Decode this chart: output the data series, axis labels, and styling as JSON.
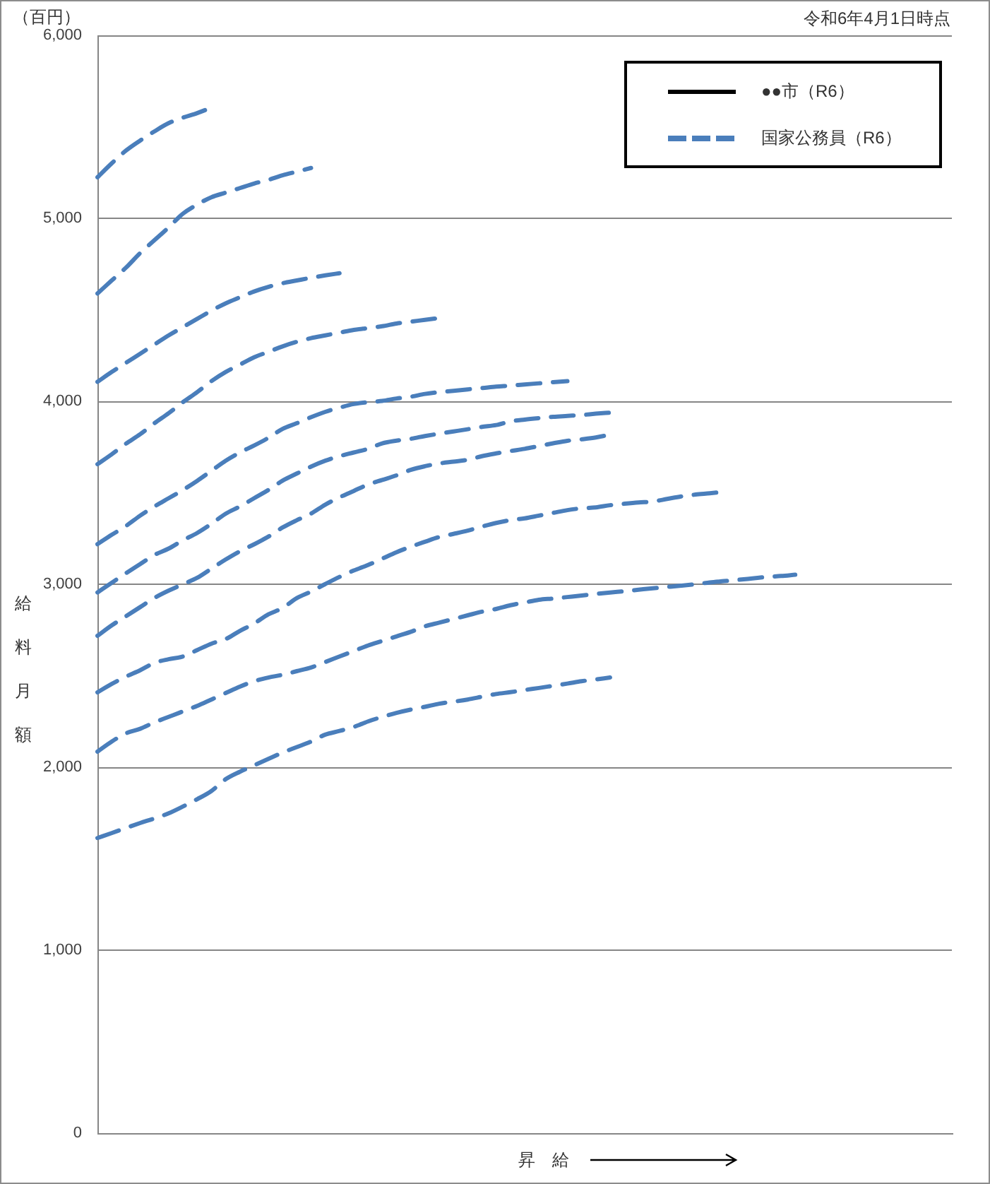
{
  "chart_data": {
    "type": "line",
    "annotations": [
      "（百円）",
      "令和6年4月1日時点"
    ],
    "xlabel": "昇　給",
    "ylabel": "給料月額",
    "categories": [
      null,
      null,
      null,
      null,
      null,
      null,
      null,
      null,
      null,
      null,
      null,
      null,
      null,
      null,
      null,
      null,
      null,
      null,
      null,
      null,
      null,
      null,
      null,
      null,
      null,
      null,
      null,
      null,
      null,
      null,
      null,
      null,
      null,
      null,
      null,
      null,
      null,
      null,
      null,
      null,
      null,
      null,
      null,
      null,
      null,
      null,
      null,
      null,
      null,
      null,
      null,
      null,
      null,
      null,
      null,
      null,
      null,
      null,
      null,
      null,
      null
    ],
    "series": [
      {
        "name": "●●市（R6）",
        "color": "#000000",
        "line_style": "solid",
        "values": [
          null,
          null,
          null,
          null,
          null,
          null,
          null,
          null,
          null,
          null,
          null,
          null,
          null,
          null,
          null,
          null,
          null,
          null,
          null,
          null,
          null,
          null,
          null,
          null,
          null,
          null,
          null,
          null,
          null,
          null,
          null,
          null,
          null,
          null,
          null,
          null,
          null,
          null,
          null,
          null,
          null,
          null,
          null,
          null,
          null,
          null,
          null,
          null,
          null,
          null,
          null,
          null,
          null,
          null,
          null,
          null,
          null,
          null,
          null,
          null,
          null
        ]
      },
      {
        "name": "国家公務員（R6）",
        "color": "#4a7ebb",
        "line_style": "dashed",
        "values": [
          5224,
          5300,
          5370,
          5425,
          5475,
          5520,
          5550,
          5575,
          5605,
          null,
          null,
          null,
          null,
          null,
          null,
          null,
          null,
          null,
          null,
          null,
          null,
          null,
          null,
          null,
          null,
          null,
          null,
          null,
          null,
          null,
          null,
          null,
          null,
          null,
          null,
          null,
          null,
          null,
          null,
          null,
          null,
          null,
          null,
          null,
          null,
          null,
          null,
          null,
          null,
          null,
          null,
          null,
          null,
          null,
          null,
          null,
          null,
          null,
          null,
          null,
          null
        ]
      },
      {
        "color": "#4a7ebb",
        "line_style": "dashed",
        "values": [
          4589,
          4660,
          4730,
          4810,
          4880,
          4950,
          5025,
          5075,
          5115,
          5140,
          5165,
          5190,
          5210,
          5235,
          5255,
          5275,
          null,
          null,
          null,
          null,
          null,
          null,
          null,
          null,
          null,
          null,
          null,
          null,
          null,
          null,
          null,
          null,
          null,
          null,
          null,
          null,
          null,
          null,
          null,
          null,
          null,
          null,
          null,
          null,
          null,
          null,
          null,
          null,
          null,
          null,
          null,
          null,
          null,
          null,
          null,
          null,
          null,
          null,
          null,
          null,
          null
        ]
      },
      {
        "color": "#4a7ebb",
        "line_style": "dashed",
        "values": [
          4106,
          4160,
          4210,
          4260,
          4310,
          4360,
          4405,
          4450,
          4495,
          4535,
          4568,
          4600,
          4625,
          4645,
          4660,
          4675,
          4688,
          4700,
          null,
          null,
          null,
          null,
          null,
          null,
          null,
          null,
          null,
          null,
          null,
          null,
          null,
          null,
          null,
          null,
          null,
          null,
          null,
          null,
          null,
          null,
          null,
          null,
          null,
          null,
          null,
          null,
          null,
          null,
          null,
          null,
          null,
          null,
          null,
          null,
          null,
          null,
          null,
          null,
          null,
          null,
          null
        ]
      },
      {
        "color": "#4a7ebb",
        "line_style": "dashed",
        "values": [
          3656,
          3710,
          3768,
          3820,
          3880,
          3935,
          3995,
          4050,
          4110,
          4160,
          4200,
          4240,
          4270,
          4300,
          4325,
          4345,
          4360,
          4375,
          4390,
          4400,
          4410,
          4425,
          4435,
          4445,
          4455,
          null,
          null,
          null,
          null,
          null,
          null,
          null,
          null,
          null,
          null,
          null,
          null,
          null,
          null,
          null,
          null,
          null,
          null,
          null,
          null,
          null,
          null,
          null,
          null,
          null,
          null,
          null,
          null,
          null,
          null,
          null,
          null,
          null,
          null,
          null,
          null
        ]
      },
      {
        "color": "#4a7ebb",
        "line_style": "dashed",
        "values": [
          3219,
          3270,
          3318,
          3375,
          3425,
          3470,
          3515,
          3565,
          3620,
          3675,
          3720,
          3758,
          3800,
          3849,
          3880,
          3913,
          3942,
          3965,
          3985,
          3995,
          4002,
          4015,
          4025,
          4040,
          4050,
          4057,
          4065,
          4072,
          4080,
          4085,
          4092,
          4098,
          4104,
          4110,
          null,
          null,
          null,
          null,
          null,
          null,
          null,
          null,
          null,
          null,
          null,
          null,
          null,
          null,
          null,
          null,
          null,
          null,
          null,
          null,
          null,
          null,
          null,
          null,
          null,
          null,
          null
        ]
      },
      {
        "color": "#4a7ebb",
        "line_style": "dashed",
        "values": [
          2955,
          3008,
          3060,
          3110,
          3160,
          3195,
          3240,
          3280,
          3330,
          3385,
          3425,
          3470,
          3515,
          3566,
          3605,
          3643,
          3675,
          3700,
          3720,
          3740,
          3770,
          3785,
          3795,
          3810,
          3823,
          3835,
          3847,
          3860,
          3870,
          3890,
          3900,
          3908,
          3915,
          3920,
          3925,
          3932,
          3938,
          null,
          null,
          null,
          null,
          null,
          null,
          null,
          null,
          null,
          null,
          null,
          null,
          null,
          null,
          null,
          null,
          null,
          null,
          null,
          null,
          null,
          null,
          null,
          null
        ]
      },
      {
        "color": "#4a7ebb",
        "line_style": "dashed",
        "values": [
          2718,
          2775,
          2825,
          2875,
          2925,
          2965,
          3000,
          3035,
          3085,
          3135,
          3180,
          3218,
          3260,
          3310,
          3350,
          3386,
          3435,
          3475,
          3510,
          3545,
          3570,
          3595,
          3625,
          3645,
          3660,
          3670,
          3680,
          3700,
          3715,
          3728,
          3740,
          3755,
          3770,
          3784,
          3792,
          3802,
          3818,
          null,
          null,
          null,
          null,
          null,
          null,
          null,
          null,
          null,
          null,
          null,
          null,
          null,
          null,
          null,
          null,
          null,
          null,
          null,
          null,
          null,
          null,
          null,
          null
        ]
      },
      {
        "color": "#4a7ebb",
        "line_style": "dashed",
        "values": [
          2409,
          2455,
          2495,
          2530,
          2570,
          2590,
          2605,
          2640,
          2675,
          2700,
          2745,
          2785,
          2835,
          2870,
          2924,
          2960,
          3001,
          3040,
          3075,
          3105,
          3140,
          3175,
          3205,
          3232,
          3258,
          3275,
          3293,
          3315,
          3335,
          3350,
          3360,
          3375,
          3390,
          3405,
          3415,
          3420,
          3432,
          3440,
          3447,
          3452,
          3466,
          3480,
          3490,
          3497,
          3505,
          null,
          null,
          null,
          null,
          null,
          null,
          null,
          null,
          null,
          null,
          null,
          null,
          null,
          null,
          null,
          null
        ]
      },
      {
        "color": "#4a7ebb",
        "line_style": "dashed",
        "values": [
          2085,
          2140,
          2185,
          2210,
          2245,
          2275,
          2305,
          2335,
          2370,
          2405,
          2440,
          2470,
          2490,
          2505,
          2525,
          2545,
          2575,
          2605,
          2635,
          2665,
          2690,
          2715,
          2740,
          2770,
          2790,
          2810,
          2830,
          2850,
          2865,
          2885,
          2900,
          2915,
          2922,
          2930,
          2938,
          2947,
          2955,
          2962,
          2970,
          2978,
          2985,
          2992,
          3000,
          3010,
          3017,
          3024,
          3032,
          3040,
          3045,
          3052,
          null,
          null,
          null,
          null,
          null,
          null,
          null,
          null,
          null,
          null,
          null
        ]
      },
      {
        "color": "#4a7ebb",
        "line_style": "dashed",
        "values": [
          1613,
          1640,
          1668,
          1695,
          1720,
          1748,
          1785,
          1825,
          1870,
          1934,
          1975,
          2010,
          2045,
          2080,
          2110,
          2140,
          2178,
          2198,
          2220,
          2250,
          2275,
          2297,
          2315,
          2330,
          2347,
          2358,
          2370,
          2385,
          2400,
          2410,
          2422,
          2433,
          2445,
          2457,
          2470,
          2480,
          2490,
          null,
          null,
          null,
          null,
          null,
          null,
          null,
          null,
          null,
          null,
          null,
          null,
          null,
          null,
          null,
          null,
          null,
          null,
          null,
          null,
          null,
          null,
          null,
          null
        ]
      }
    ],
    "ylim": [
      0,
      6000
    ],
    "yticks": [
      0,
      {
        "value": 1000,
        "label": "1,000"
      },
      {
        "value": 2000,
        "label": "2,000"
      },
      {
        "value": 3000,
        "label": "3,000"
      },
      {
        "value": 4000,
        "label": "4,000"
      },
      {
        "value": 5000,
        "label": "5,000"
      },
      {
        "value": 6000,
        "label": "6,000"
      }
    ],
    "grid": "y",
    "legend": "top right",
    "tick_labels": "y",
    "marker": "none"
  }
}
